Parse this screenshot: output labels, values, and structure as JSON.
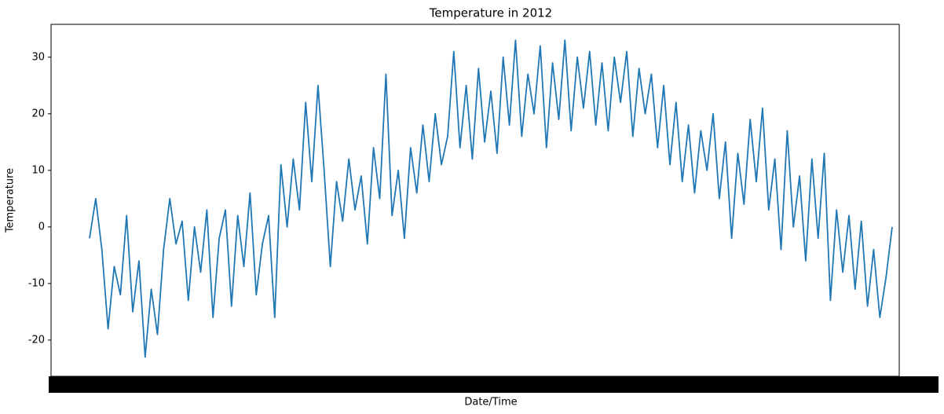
{
  "chart_data": {
    "type": "line",
    "title": "Temperature in 2012",
    "x_label": "Date/Time",
    "y_label": "Temperature",
    "color": "#1f77b4",
    "ylim": [
      -26.4,
      35.8
    ],
    "yticks": [
      -20,
      -10,
      0,
      10,
      20,
      30
    ],
    "values": [
      -2,
      5,
      -4,
      -18,
      -7,
      -12,
      2,
      -15,
      -6,
      -23,
      -11,
      -19,
      -4,
      5,
      -3,
      1,
      -13,
      0,
      -8,
      3,
      -16,
      -2,
      3,
      -14,
      2,
      -7,
      6,
      -12,
      -3,
      2,
      -16,
      11,
      0,
      12,
      3,
      22,
      8,
      25,
      10,
      -7,
      8,
      1,
      12,
      3,
      9,
      -3,
      14,
      5,
      27,
      2,
      10,
      -2,
      14,
      6,
      18,
      8,
      20,
      11,
      16,
      31,
      14,
      25,
      12,
      28,
      15,
      24,
      13,
      30,
      18,
      33,
      16,
      27,
      20,
      32,
      14,
      29,
      19,
      33,
      17,
      30,
      21,
      31,
      18,
      29,
      17,
      30,
      22,
      31,
      16,
      28,
      20,
      27,
      14,
      25,
      11,
      22,
      8,
      18,
      6,
      17,
      10,
      20,
      5,
      15,
      -2,
      13,
      4,
      19,
      8,
      21,
      3,
      12,
      -4,
      17,
      0,
      9,
      -6,
      12,
      -2,
      13,
      -13,
      3,
      -8,
      2,
      -11,
      1,
      -14,
      -4,
      -16,
      -9,
      0
    ]
  }
}
